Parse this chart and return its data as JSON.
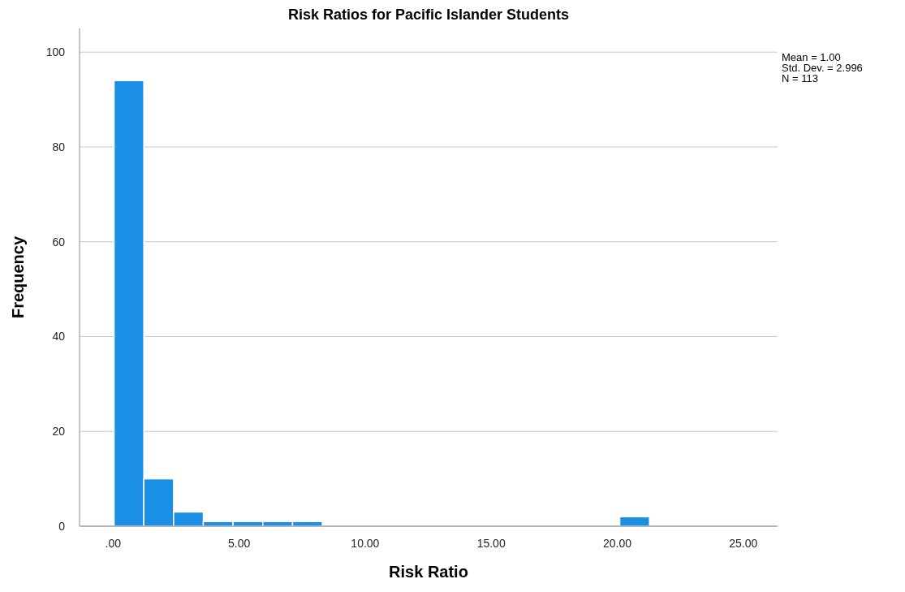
{
  "chart_data": {
    "type": "histogram",
    "title": "Risk Ratios for Pacific Islander Students",
    "xlabel": "Risk Ratio",
    "ylabel": "Frequency",
    "bins": [
      0.04,
      1.22,
      2.4,
      3.58,
      4.76,
      5.94,
      7.12,
      8.3,
      9.48,
      10.66,
      11.84,
      13.02,
      14.2,
      15.38,
      16.56,
      17.74,
      18.92,
      20.1,
      21.28
    ],
    "values": [
      94,
      10,
      3,
      1,
      1,
      1,
      1,
      0,
      0,
      0,
      0,
      0,
      0,
      0,
      0,
      0,
      0,
      2
    ],
    "color": "#1a8fe6",
    "xlim": [
      -1.33,
      26.36
    ],
    "xticks": [
      {
        "value": 0,
        "label": ".00"
      },
      {
        "value": 5,
        "label": "5.00"
      },
      {
        "value": 10,
        "label": "10.00"
      },
      {
        "value": 15,
        "label": "15.00"
      },
      {
        "value": 20,
        "label": "20.00"
      },
      {
        "value": 25,
        "label": "25.00"
      }
    ],
    "ylim": [
      0,
      105
    ],
    "yticks": [
      0,
      20,
      40,
      60,
      80,
      100
    ],
    "grid": "y",
    "annotations": [
      "Mean = 1.00",
      "Std. Dev. = 2.996",
      "N = 113"
    ]
  }
}
